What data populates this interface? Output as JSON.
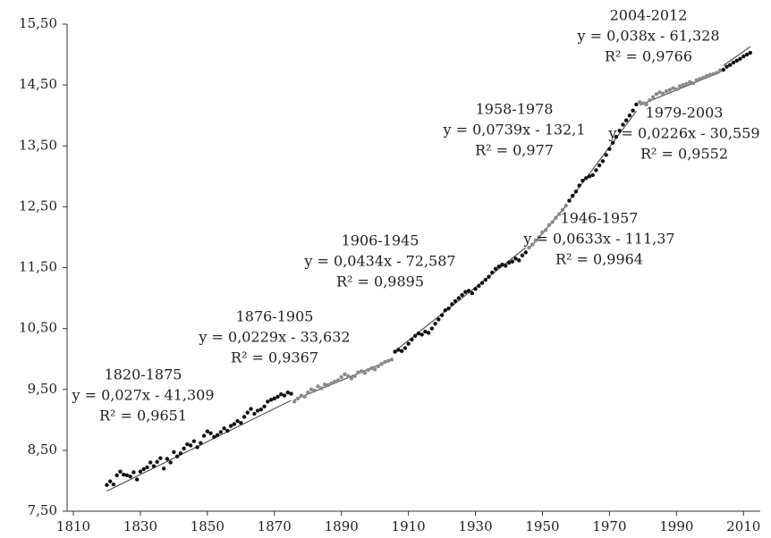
{
  "chart_data": {
    "type": "scatter",
    "series": [
      {
        "color": "#111111",
        "x": [
          1820,
          1821,
          1822,
          1823,
          1824,
          1825,
          1826,
          1827,
          1828,
          1829,
          1830,
          1831,
          1832,
          1833,
          1834,
          1835,
          1836,
          1837,
          1838,
          1839,
          1840,
          1841,
          1842,
          1843,
          1844,
          1845,
          1846,
          1847,
          1848,
          1849,
          1850,
          1851,
          1852,
          1853,
          1854,
          1855,
          1856,
          1857,
          1858,
          1859,
          1860,
          1861,
          1862,
          1863,
          1864,
          1865,
          1866,
          1867,
          1868,
          1869,
          1870,
          1871,
          1872,
          1873,
          1874,
          1875
        ],
        "values": [
          7.93,
          7.99,
          7.94,
          8.09,
          8.15,
          8.1,
          8.09,
          8.07,
          8.14,
          8.02,
          8.15,
          8.19,
          8.22,
          8.3,
          8.24,
          8.31,
          8.37,
          8.2,
          8.36,
          8.3,
          8.47,
          8.4,
          8.45,
          8.53,
          8.6,
          8.58,
          8.65,
          8.55,
          8.62,
          8.74,
          8.81,
          8.78,
          8.72,
          8.75,
          8.8,
          8.86,
          8.82,
          8.9,
          8.93,
          8.98,
          8.95,
          9.05,
          9.12,
          9.18,
          9.1,
          9.15,
          9.17,
          9.22,
          9.3,
          9.33,
          9.35,
          9.38,
          9.42,
          9.4,
          9.45,
          9.43
        ]
      },
      {
        "color": "#8a8a8a",
        "x": [
          1876,
          1877,
          1878,
          1879,
          1880,
          1881,
          1882,
          1883,
          1884,
          1885,
          1886,
          1887,
          1888,
          1889,
          1890,
          1891,
          1892,
          1893,
          1894,
          1895,
          1896,
          1897,
          1898,
          1899,
          1900,
          1901,
          1902,
          1903,
          1904,
          1905
        ],
        "values": [
          9.3,
          9.35,
          9.4,
          9.38,
          9.45,
          9.5,
          9.48,
          9.55,
          9.52,
          9.58,
          9.57,
          9.6,
          9.63,
          9.65,
          9.7,
          9.75,
          9.72,
          9.68,
          9.72,
          9.78,
          9.8,
          9.77,
          9.82,
          9.85,
          9.83,
          9.88,
          9.92,
          9.95,
          9.97,
          9.99
        ]
      },
      {
        "color": "#111111",
        "x": [
          1906,
          1907,
          1908,
          1909,
          1910,
          1911,
          1912,
          1913,
          1914,
          1915,
          1916,
          1917,
          1918,
          1919,
          1920,
          1921,
          1922,
          1923,
          1924,
          1925,
          1926,
          1927,
          1928,
          1929,
          1930,
          1931,
          1932,
          1933,
          1934,
          1935,
          1936,
          1937,
          1938,
          1939,
          1940,
          1941,
          1942,
          1943,
          1944,
          1945
        ],
        "values": [
          10.12,
          10.15,
          10.13,
          10.18,
          10.25,
          10.32,
          10.38,
          10.42,
          10.4,
          10.45,
          10.43,
          10.5,
          10.58,
          10.65,
          10.72,
          10.8,
          10.83,
          10.9,
          10.95,
          11.0,
          11.05,
          11.1,
          11.12,
          11.08,
          11.15,
          11.2,
          11.25,
          11.3,
          11.35,
          11.42,
          11.48,
          11.52,
          11.55,
          11.53,
          11.58,
          11.6,
          11.65,
          11.62,
          11.7,
          11.75
        ]
      },
      {
        "color": "#8a8a8a",
        "x": [
          1946,
          1947,
          1948,
          1949,
          1950,
          1951,
          1952,
          1953,
          1954,
          1955,
          1956,
          1957
        ],
        "values": [
          11.83,
          11.88,
          11.95,
          12.0,
          12.08,
          12.12,
          12.2,
          12.25,
          12.32,
          12.38,
          12.45,
          12.52
        ]
      },
      {
        "color": "#111111",
        "x": [
          1958,
          1959,
          1960,
          1961,
          1962,
          1963,
          1964,
          1965,
          1966,
          1967,
          1968,
          1969,
          1970,
          1971,
          1972,
          1973,
          1974,
          1975,
          1976,
          1977,
          1978
        ],
        "values": [
          12.6,
          12.68,
          12.75,
          12.85,
          12.93,
          12.97,
          13.0,
          13.02,
          13.1,
          13.18,
          13.25,
          13.35,
          13.45,
          13.55,
          13.65,
          13.75,
          13.85,
          13.92,
          14.0,
          14.08,
          14.18
        ]
      },
      {
        "color": "#8a8a8a",
        "x": [
          1979,
          1980,
          1981,
          1982,
          1983,
          1984,
          1985,
          1986,
          1987,
          1988,
          1989,
          1990,
          1991,
          1992,
          1993,
          1994,
          1995,
          1996,
          1997,
          1998,
          1999,
          2000,
          2001,
          2002,
          2003
        ],
        "values": [
          14.22,
          14.2,
          14.18,
          14.25,
          14.3,
          14.35,
          14.38,
          14.36,
          14.4,
          14.42,
          14.45,
          14.43,
          14.48,
          14.5,
          14.52,
          14.55,
          14.53,
          14.58,
          14.6,
          14.62,
          14.65,
          14.67,
          14.68,
          14.7,
          14.74
        ]
      },
      {
        "color": "#111111",
        "x": [
          2004,
          2005,
          2006,
          2007,
          2008,
          2009,
          2010,
          2011,
          2012
        ],
        "values": [
          14.75,
          14.8,
          14.83,
          14.87,
          14.9,
          14.93,
          14.97,
          15.0,
          15.03
        ]
      }
    ],
    "trendlines": [
      {
        "period": "1820-1875",
        "equation": "y = 0,027x - 41,309",
        "r2": "R² = 0,9651",
        "x": [
          1820,
          1875
        ],
        "values": [
          7.83,
          9.32
        ]
      },
      {
        "period": "1876-1905",
        "equation": "y = 0,0229x - 33,632",
        "r2": "R² = 0,9367",
        "x": [
          1876,
          1905
        ],
        "values": [
          9.33,
          9.99
        ]
      },
      {
        "period": "1906-1945",
        "equation": "y = 0,0434x - 72,587",
        "r2": "R² = 0,9895",
        "x": [
          1906,
          1945
        ],
        "values": [
          10.13,
          11.83
        ]
      },
      {
        "period": "1946-1957",
        "equation": "y = 0,0633x - 111,37",
        "r2": "R² = 0,9964",
        "x": [
          1946,
          1957
        ],
        "values": [
          11.81,
          12.51
        ]
      },
      {
        "period": "1958-1978",
        "equation": "y = 0,0739x - 132,1",
        "r2": "R² = 0,977",
        "x": [
          1958,
          1978
        ],
        "values": [
          12.6,
          14.07
        ]
      },
      {
        "period": "1979-2003",
        "equation": "y = 0,0226x - 30,559",
        "r2": "R² = 0,9552",
        "x": [
          1979,
          2003
        ],
        "values": [
          14.17,
          14.71
        ]
      },
      {
        "period": "2004-2012",
        "equation": "y = 0,038x - 61,328",
        "r2": "R² = 0,9766",
        "x": [
          2004,
          2012
        ],
        "values": [
          14.82,
          15.13
        ]
      }
    ],
    "xlim": [
      1810,
      2015
    ],
    "xticks": [
      1810,
      1830,
      1850,
      1870,
      1890,
      1910,
      1930,
      1950,
      1970,
      1990,
      2010
    ],
    "ylim": [
      7.5,
      15.5
    ],
    "yticks": [
      {
        "value": 7.5,
        "label": "7,50"
      },
      {
        "value": 8.5,
        "label": "8,50"
      },
      {
        "value": 9.5,
        "label": "9,50"
      },
      {
        "value": 10.5,
        "label": "10,50"
      },
      {
        "value": 11.5,
        "label": "11,50"
      },
      {
        "value": 12.5,
        "label": "12,50"
      },
      {
        "value": 13.5,
        "label": "13,50"
      },
      {
        "value": 14.5,
        "label": "14,50"
      },
      {
        "value": 15.5,
        "label": "15,50"
      }
    ]
  }
}
